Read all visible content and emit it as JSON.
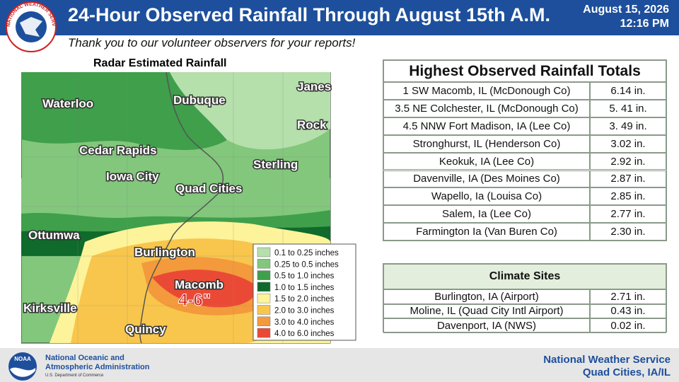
{
  "header": {
    "title": "24-Hour Observed Rainfall Through August 15th A.M.",
    "subtitle": "Thank you to our volunteer observers for your reports!",
    "date": "August 15, 2026",
    "time": "12:16 PM",
    "logo_text": "NATIONAL WEATHER SERVICE"
  },
  "map": {
    "title": "Radar Estimated Rainfall",
    "labels": [
      "Waterloo",
      "Dubuque",
      "Janes",
      "Rock",
      "Cedar Rapids",
      "Iowa City",
      "Sterling",
      "Quad Cities",
      "Ottumwa",
      "Burlington",
      "Macomb",
      "Kirksville",
      "Quincy"
    ],
    "callout": "4-6\"",
    "legend": [
      {
        "label": "0.1 to 0.25 inches",
        "color": "#b5dfab"
      },
      {
        "label": "0.25 to 0.5 inches",
        "color": "#82c77c"
      },
      {
        "label": "0.5 to 1.0 inches",
        "color": "#3f9f4b"
      },
      {
        "label": "1.0 to 1.5 inches",
        "color": "#0f6a2b"
      },
      {
        "label": "1.5 to 2.0 inches",
        "color": "#fdf39a"
      },
      {
        "label": "2.0 to 3.0 inches",
        "color": "#f8c64c"
      },
      {
        "label": "3.0 to 4.0 inches",
        "color": "#f39a3c"
      },
      {
        "label": "4.0 to 6.0 inches",
        "color": "#ea4a35"
      }
    ]
  },
  "highest_table": {
    "title": "Highest Observed Rainfall Totals",
    "rows": [
      [
        "1 SW Macomb, IL (McDonough Co)",
        "6.14 in."
      ],
      [
        "3.5 NE Colchester, IL  (McDonough Co)",
        "5. 41 in."
      ],
      [
        "4.5 NNW Fort Madison, IA  (Lee Co)",
        "3. 49 in."
      ],
      [
        "Stronghurst, IL (Henderson Co)",
        "3.02 in."
      ],
      [
        "Keokuk, IA (Lee Co)",
        "2.92  in."
      ],
      [
        "Davenville, IA (Des Moines Co)",
        "2.87 in."
      ],
      [
        "Wapello, Ia (Louisa Co)",
        "2.85 in."
      ],
      [
        "Salem, Ia (Lee Co)",
        "2.77 in."
      ],
      [
        "Farmington Ia (Van Buren Co)",
        "2.30 in."
      ]
    ]
  },
  "climate_table": {
    "title": "Climate Sites",
    "rows": [
      [
        "Burlington, IA (Airport)",
        "2.71 in."
      ],
      [
        "Moline, IL (Quad City Intl Airport)",
        "0.43 in."
      ],
      [
        "Davenport, IA (NWS)",
        "0.02 in."
      ]
    ]
  },
  "footer": {
    "noaa_logo": "NOAA",
    "agency_line1": "National Oceanic and",
    "agency_line2": "Atmospheric Administration",
    "agency_line3": "U.S. Department of Commerce",
    "office_line1": "National Weather Service",
    "office_line2": "Quad Cities, IA/IL"
  }
}
